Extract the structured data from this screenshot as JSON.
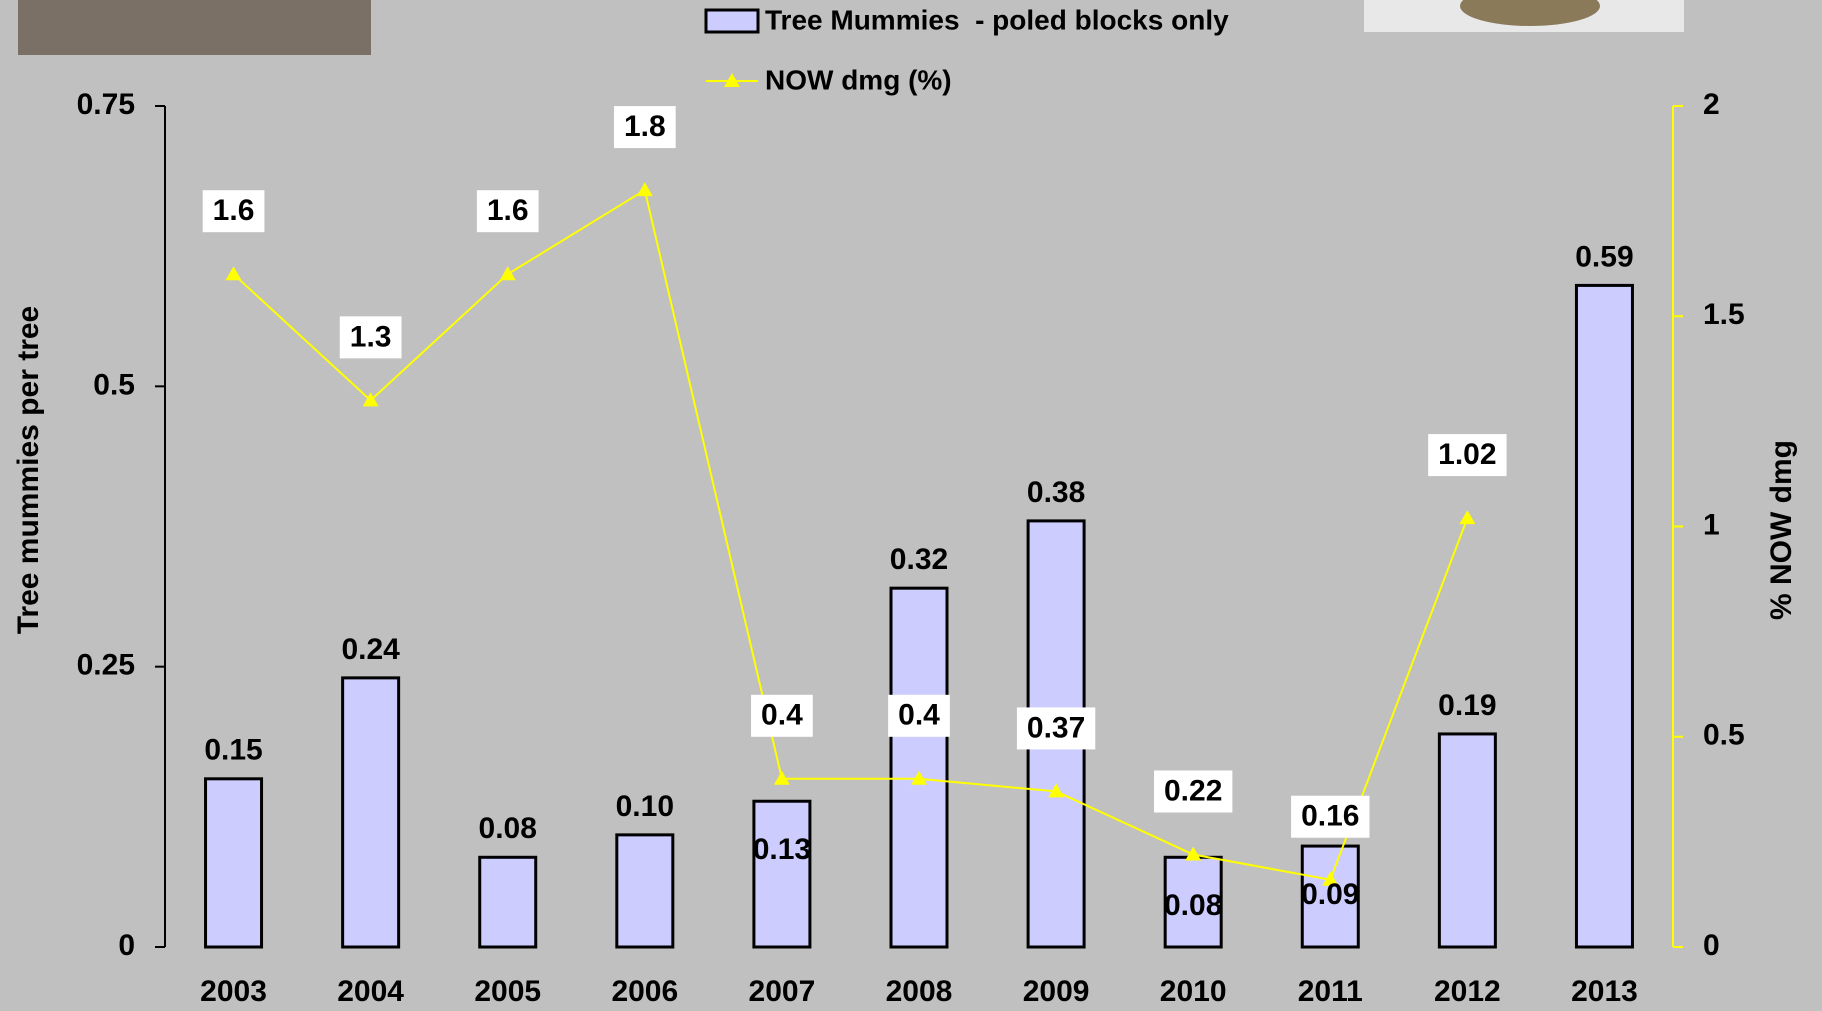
{
  "chart_data": {
    "type": "bar-line",
    "categories": [
      "2003",
      "2004",
      "2005",
      "2006",
      "2007",
      "2008",
      "2009",
      "2010",
      "2011",
      "2012",
      "2013"
    ],
    "y_label": "Tree mummies per tree",
    "y2_label": "% NOW dmg",
    "ylim": [
      0,
      0.75
    ],
    "yticks": [
      0,
      0.25,
      0.5,
      0.75
    ],
    "y2lim": [
      0,
      2
    ],
    "y2ticks": [
      0,
      0.5,
      1,
      1.5,
      2
    ],
    "series": [
      {
        "name": "Tree Mummies  - poled blocks only",
        "type": "bar",
        "color": "#ccccff",
        "values": [
          0.15,
          0.24,
          0.08,
          0.1,
          0.13,
          0.32,
          0.38,
          0.08,
          0.09,
          0.19,
          0.59
        ],
        "value_labels": [
          "0.15",
          "0.24",
          "0.08",
          "0.10",
          "0.13",
          "0.32",
          "0.38",
          "0.08",
          "0.09",
          "0.19",
          "0.59"
        ]
      },
      {
        "name": "NOW dmg (%)",
        "type": "line",
        "axis": "y2",
        "color": "#ffff00",
        "values": [
          1.6,
          1.3,
          1.6,
          1.8,
          0.4,
          0.4,
          0.37,
          0.22,
          0.16,
          1.02,
          null
        ]
      }
    ]
  }
}
